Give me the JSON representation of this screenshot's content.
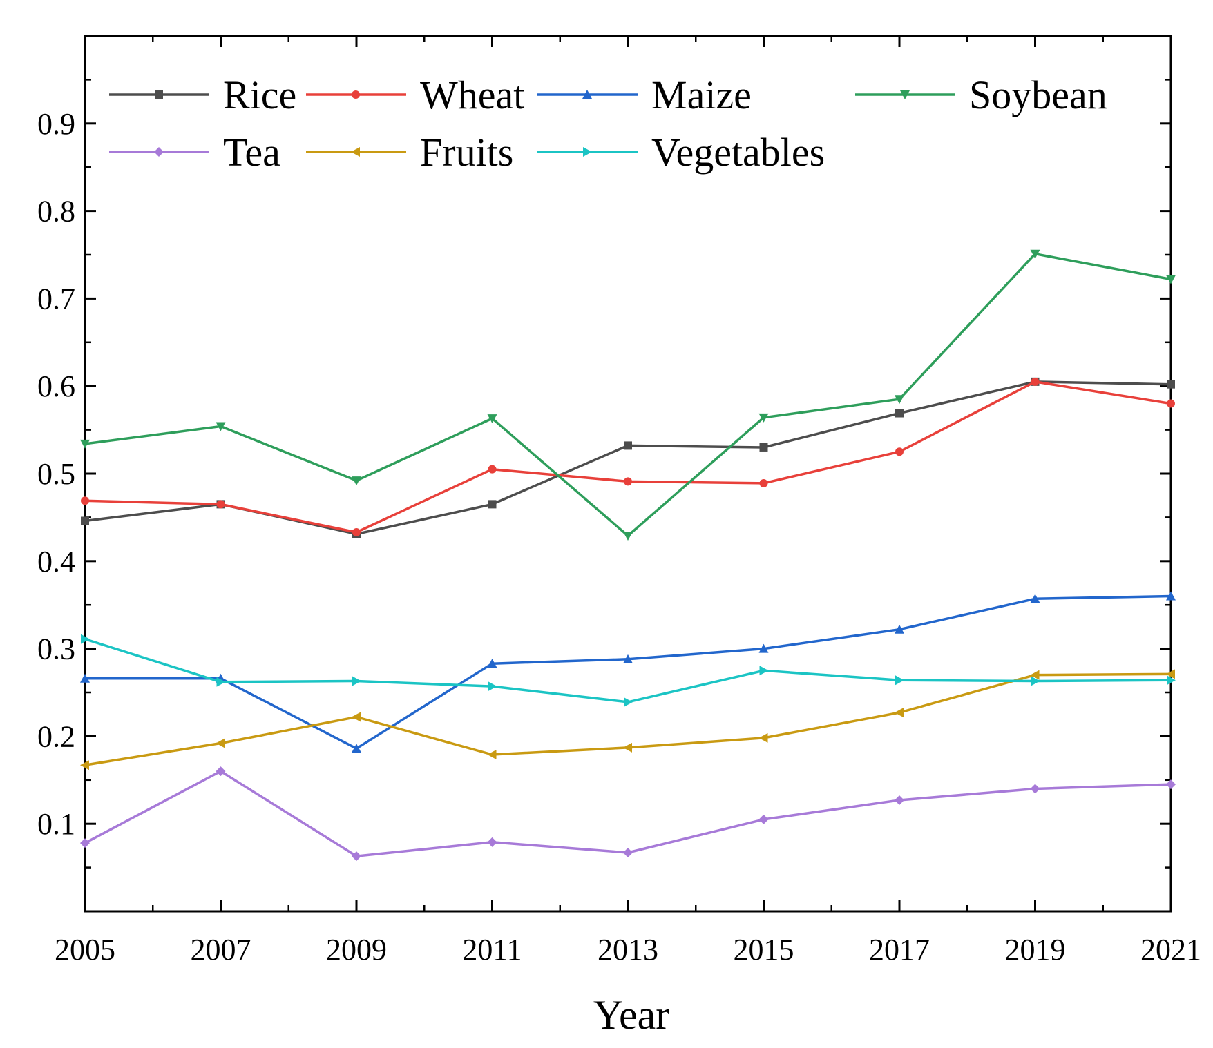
{
  "chart_data": {
    "type": "line",
    "title": "",
    "xlabel": "Year",
    "ylabel": "",
    "x": [
      2005,
      2007,
      2009,
      2011,
      2013,
      2015,
      2017,
      2019,
      2021
    ],
    "xlim": [
      2005,
      2021
    ],
    "ylim": [
      0.0,
      1.0
    ],
    "x_ticks": [
      "2005",
      "2007",
      "2009",
      "2011",
      "2013",
      "2015",
      "2017",
      "2019",
      "2021"
    ],
    "y_ticks": [
      {
        "value": 0.1,
        "label": "0.1"
      },
      {
        "value": 0.2,
        "label": "0.2"
      },
      {
        "value": 0.3,
        "label": "0.3"
      },
      {
        "value": 0.4,
        "label": "0.4"
      },
      {
        "value": 0.5,
        "label": "0.5"
      },
      {
        "value": 0.6,
        "label": "0.6"
      },
      {
        "value": 0.7,
        "label": "0.7"
      },
      {
        "value": 0.8,
        "label": "0.8"
      },
      {
        "value": 0.9,
        "label": "0.9"
      }
    ],
    "grid": false,
    "legend_position": "top-left",
    "series": [
      {
        "name": "Rice",
        "color": "#4d4d4d",
        "marker": "square",
        "values": [
          0.446,
          0.465,
          0.431,
          0.465,
          0.532,
          0.53,
          0.569,
          0.605,
          0.602
        ]
      },
      {
        "name": "Wheat",
        "color": "#e8403a",
        "marker": "circle",
        "values": [
          0.469,
          0.465,
          0.433,
          0.505,
          0.491,
          0.489,
          0.525,
          0.605,
          0.58
        ]
      },
      {
        "name": "Maize",
        "color": "#2266cc",
        "marker": "triangle-up",
        "values": [
          0.266,
          0.266,
          0.186,
          0.283,
          0.288,
          0.3,
          0.322,
          0.357,
          0.36
        ]
      },
      {
        "name": "Soybean",
        "color": "#2e9e5b",
        "marker": "triangle-down",
        "values": [
          0.534,
          0.554,
          0.492,
          0.563,
          0.429,
          0.564,
          0.585,
          0.751,
          0.722
        ]
      },
      {
        "name": "Tea",
        "color": "#a77ad8",
        "marker": "diamond",
        "values": [
          0.078,
          0.16,
          0.063,
          0.079,
          0.067,
          0.105,
          0.127,
          0.14,
          0.145
        ]
      },
      {
        "name": "Fruits",
        "color": "#c99a12",
        "marker": "triangle-left",
        "values": [
          0.167,
          0.192,
          0.222,
          0.179,
          0.187,
          0.198,
          0.227,
          0.27,
          0.271
        ]
      },
      {
        "name": "Vegetables",
        "color": "#1bc4c4",
        "marker": "triangle-right",
        "values": [
          0.311,
          0.262,
          0.263,
          0.257,
          0.239,
          0.275,
          0.264,
          0.263,
          0.264
        ]
      }
    ]
  }
}
